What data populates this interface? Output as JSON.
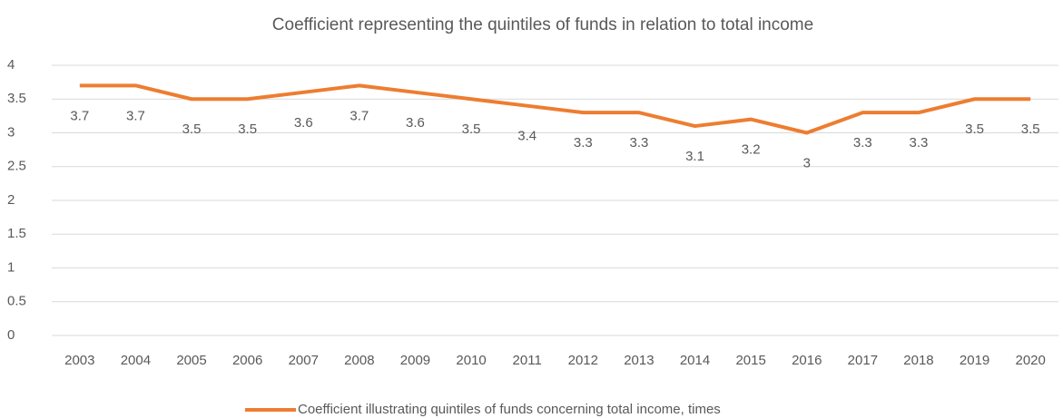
{
  "chart_data": {
    "type": "line",
    "title": "Coefficient representing the quintiles of funds in relation to total income",
    "categories": [
      "2003",
      "2004",
      "2005",
      "2006",
      "2007",
      "2008",
      "2009",
      "2010",
      "2011",
      "2012",
      "2013",
      "2014",
      "2015",
      "2016",
      "2017",
      "2018",
      "2019",
      "2020"
    ],
    "series": [
      {
        "name": "Coefficient illustrating quintiles of funds concerning total income, times",
        "color": "#ed7d31",
        "values": [
          3.7,
          3.7,
          3.5,
          3.5,
          3.6,
          3.7,
          3.6,
          3.5,
          3.4,
          3.3,
          3.3,
          3.1,
          3.2,
          3,
          3.3,
          3.3,
          3.5,
          3.5
        ]
      }
    ],
    "ylim": [
      0,
      4
    ],
    "yticks": [
      0,
      0.5,
      1,
      1.5,
      2,
      2.5,
      3,
      3.5,
      4
    ],
    "grid": true,
    "legend": "bottom"
  }
}
